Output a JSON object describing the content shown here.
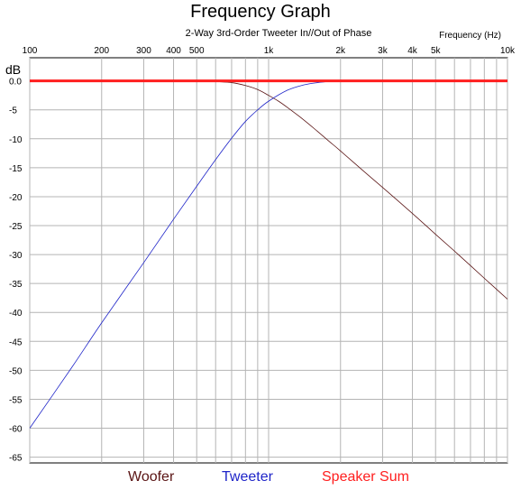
{
  "chart_data": {
    "type": "line",
    "title": "Frequency Graph",
    "subtitle": "2-Way 3rd-Order Tweeter In//Out of Phase",
    "xlabel": "Frequency   (Hz)",
    "ylabel": "dB",
    "x_scale": "log",
    "xlim": [
      100,
      10000
    ],
    "ylim": [
      -66,
      4
    ],
    "x_tick_labels": [
      {
        "value": 100,
        "label": "100"
      },
      {
        "value": 200,
        "label": "200"
      },
      {
        "value": 300,
        "label": "300"
      },
      {
        "value": 400,
        "label": "400"
      },
      {
        "value": 500,
        "label": "500"
      },
      {
        "value": 1000,
        "label": "1k"
      },
      {
        "value": 2000,
        "label": "2k"
      },
      {
        "value": 3000,
        "label": "3k"
      },
      {
        "value": 4000,
        "label": "4k"
      },
      {
        "value": 5000,
        "label": "5k"
      },
      {
        "value": 10000,
        "label": "10k"
      }
    ],
    "y_ticks": [
      0,
      -5,
      -10,
      -15,
      -20,
      -25,
      -30,
      -35,
      -40,
      -45,
      -50,
      -55,
      -60,
      -65
    ],
    "y_tick_labels": [
      "0.0",
      "-5",
      "-10",
      "-15",
      "-20",
      "-25",
      "-30",
      "-35",
      "-40",
      "-45",
      "-50",
      "-55",
      "-60",
      "-65"
    ],
    "grid": true,
    "series": [
      {
        "name": "Woofer",
        "color": "#5a1414",
        "x": [
          100,
          200,
          300,
          400,
          500,
          600,
          700,
          800,
          900,
          1000,
          1100,
          1200,
          1400,
          1600,
          1800,
          2000,
          2500,
          3000,
          4000,
          5000,
          6000,
          7000,
          8000,
          9000,
          10000
        ],
        "y": [
          0,
          0,
          0,
          0,
          0,
          -0.1,
          -0.3,
          -0.8,
          -1.5,
          -2.5,
          -3.5,
          -4.6,
          -6.7,
          -8.7,
          -10.5,
          -12.1,
          -15.6,
          -18.4,
          -22.9,
          -26.5,
          -29.4,
          -31.9,
          -34.1,
          -36.0,
          -37.7
        ]
      },
      {
        "name": "Tweeter",
        "color": "#1e24c8",
        "x": [
          100,
          150,
          200,
          300,
          400,
          500,
          600,
          700,
          800,
          900,
          1000,
          1200,
          1400,
          1600,
          1800,
          2000,
          3000,
          5000,
          10000
        ],
        "y": [
          -60,
          -49.5,
          -41.8,
          -31.4,
          -23.9,
          -18.2,
          -13.6,
          -9.9,
          -7.0,
          -5.0,
          -3.5,
          -1.6,
          -0.7,
          -0.3,
          -0.1,
          0,
          0,
          0,
          0
        ]
      },
      {
        "name": "Speaker Sum",
        "color": "#ff1e1e",
        "x": [
          100,
          10000
        ],
        "y": [
          0,
          0
        ]
      }
    ],
    "legend": [
      "Woofer",
      "Tweeter",
      "Speaker Sum"
    ],
    "legend_position": "bottom"
  }
}
